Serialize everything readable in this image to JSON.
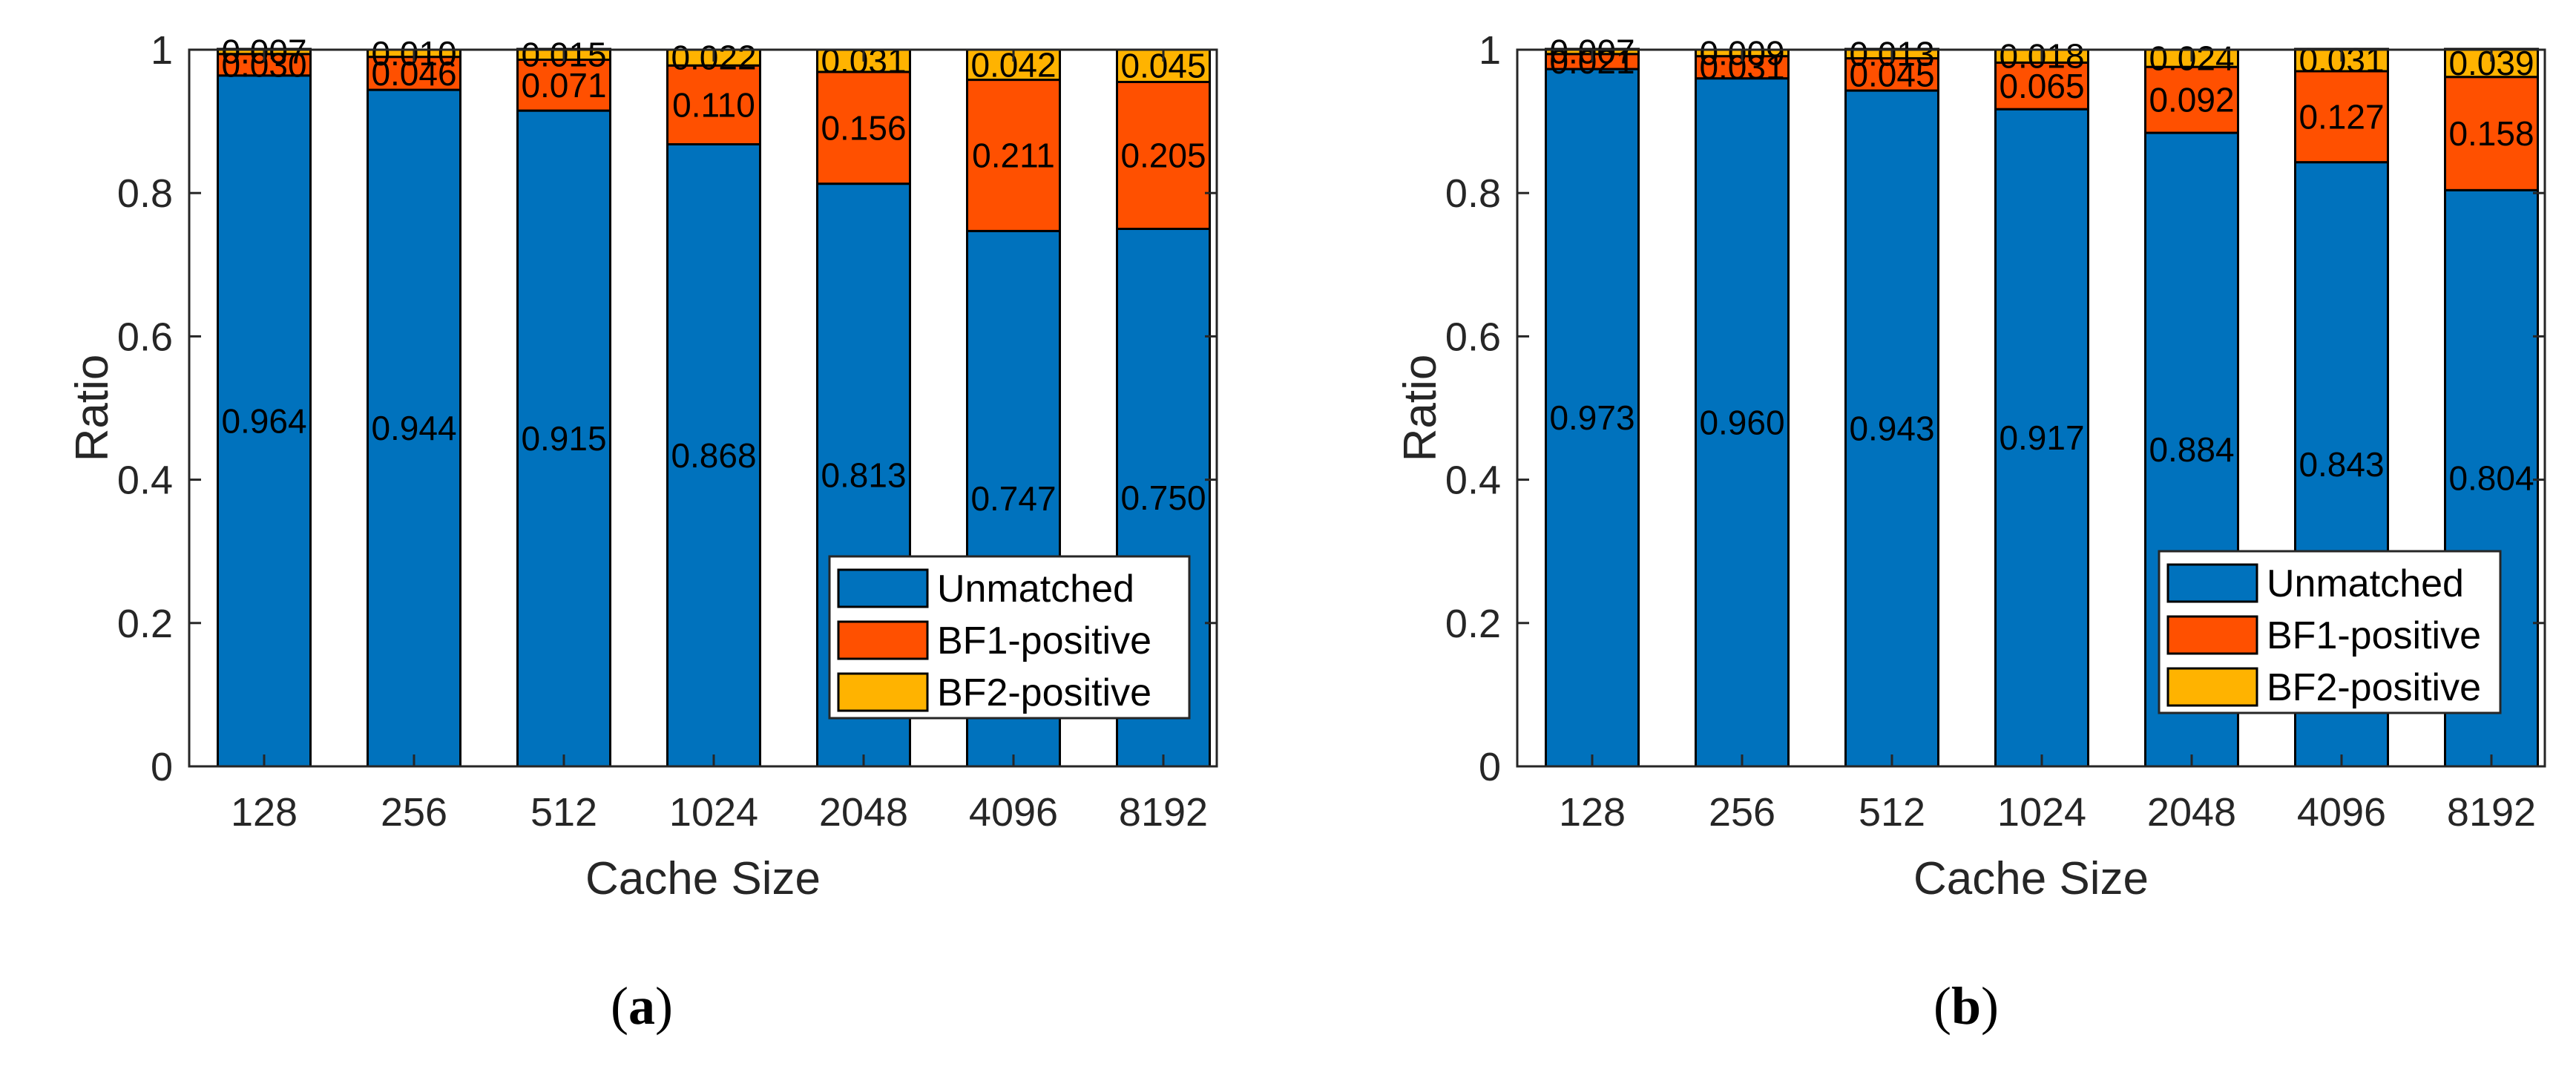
{
  "chart_data": [
    {
      "type": "bar",
      "stacked": true,
      "caption_open": "(",
      "caption_letter": "a",
      "caption_close": ")",
      "categories": [
        "128",
        "256",
        "512",
        "1024",
        "2048",
        "4096",
        "8192"
      ],
      "xlabel": "Cache Size",
      "ylabel": "Ratio",
      "ylim": [
        0,
        1
      ],
      "yticks": [
        0,
        0.2,
        0.4,
        0.6,
        0.8,
        1
      ],
      "ytick_labels": [
        "0",
        "0.2",
        "0.4",
        "0.6",
        "0.8",
        "1"
      ],
      "legend_position": "bottom-right",
      "series": [
        {
          "name": "Unmatched",
          "color": "#0072BD",
          "values": [
            0.964,
            0.944,
            0.915,
            0.868,
            0.813,
            0.747,
            0.75
          ],
          "labels": [
            "0.964",
            "0.944",
            "0.915",
            "0.868",
            "0.813",
            "0.747",
            "0.750"
          ]
        },
        {
          "name": "BF1-positive",
          "color": "#FF5000",
          "values": [
            0.03,
            0.046,
            0.071,
            0.11,
            0.156,
            0.211,
            0.205
          ],
          "labels": [
            "0.030",
            "0.046",
            "0.071",
            "0.110",
            "0.156",
            "0.211",
            "0.205"
          ]
        },
        {
          "name": "BF2-positive",
          "color": "#FFB300",
          "values": [
            0.007,
            0.01,
            0.015,
            0.022,
            0.031,
            0.042,
            0.045
          ],
          "labels": [
            "0.007",
            "0.010",
            "0.015",
            "0.022",
            "0.031",
            "0.042",
            "0.045"
          ]
        }
      ]
    },
    {
      "type": "bar",
      "stacked": true,
      "caption_open": "(",
      "caption_letter": "b",
      "caption_close": ")",
      "categories": [
        "128",
        "256",
        "512",
        "1024",
        "2048",
        "4096",
        "8192"
      ],
      "xlabel": "Cache Size",
      "ylabel": "Ratio",
      "ylim": [
        0,
        1
      ],
      "yticks": [
        0,
        0.2,
        0.4,
        0.6,
        0.8,
        1
      ],
      "ytick_labels": [
        "0",
        "0.2",
        "0.4",
        "0.6",
        "0.8",
        "1"
      ],
      "legend_position": "bottom-right",
      "series": [
        {
          "name": "Unmatched",
          "color": "#0072BD",
          "values": [
            0.973,
            0.96,
            0.943,
            0.917,
            0.884,
            0.843,
            0.804
          ],
          "labels": [
            "0.973",
            "0.960",
            "0.943",
            "0.917",
            "0.884",
            "0.843",
            "0.804"
          ]
        },
        {
          "name": "BF1-positive",
          "color": "#FF5000",
          "values": [
            0.021,
            0.031,
            0.045,
            0.065,
            0.092,
            0.127,
            0.158
          ],
          "labels": [
            "0.021",
            "0.031",
            "0.045",
            "0.065",
            "0.092",
            "0.127",
            "0.158"
          ]
        },
        {
          "name": "BF2-positive",
          "color": "#FFB300",
          "values": [
            0.007,
            0.009,
            0.013,
            0.018,
            0.024,
            0.031,
            0.039
          ],
          "labels": [
            "0.007",
            "0.009",
            "0.013",
            "0.018",
            "0.024",
            "0.031",
            "0.039"
          ]
        }
      ]
    }
  ]
}
